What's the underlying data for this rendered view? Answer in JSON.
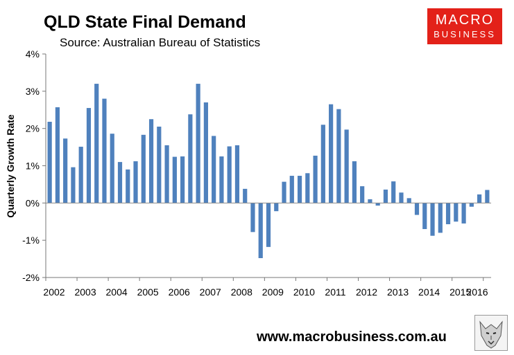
{
  "header": {
    "title": "QLD State Final Demand",
    "subtitle": "Source: Australian Bureau of Statistics"
  },
  "brand": {
    "logo_line1": "MACRO",
    "logo_line2": "BUSINESS",
    "website": "www.macrobusiness.com.au",
    "logo_color": "#e32119",
    "bar_color": "#4f81bd"
  },
  "chart_data": {
    "type": "bar",
    "title": "QLD State Final Demand",
    "subtitle": "Source: Australian Bureau of Statistics",
    "xlabel": "",
    "ylabel": "Quarterly Growth Rate",
    "ylim": [
      -2,
      4
    ],
    "yticks": [
      -2,
      -1,
      0,
      1,
      2,
      3,
      4
    ],
    "ytick_labels": [
      "-2%",
      "-1%",
      "0%",
      "1%",
      "2%",
      "3%",
      "4%"
    ],
    "xtick_labels": [
      "2002",
      "2003",
      "2004",
      "2005",
      "2006",
      "2007",
      "2008",
      "2009",
      "2010",
      "2011",
      "2012",
      "2013",
      "2014",
      "2015",
      "2016"
    ],
    "grid": false,
    "series": [
      {
        "name": "Quarterly Growth Rate",
        "values": [
          2.18,
          2.57,
          1.73,
          0.96,
          1.51,
          2.55,
          3.2,
          2.8,
          1.86,
          1.1,
          0.9,
          1.12,
          1.83,
          2.25,
          2.05,
          1.55,
          1.24,
          1.25,
          2.38,
          3.2,
          2.7,
          1.8,
          1.25,
          1.52,
          1.55,
          0.38,
          -0.78,
          -1.48,
          -1.18,
          -0.22,
          0.57,
          0.73,
          0.73,
          0.8,
          1.27,
          2.1,
          2.65,
          2.52,
          1.97,
          1.12,
          0.45,
          0.1,
          -0.07,
          0.36,
          0.58,
          0.28,
          0.13,
          -0.32,
          -0.7,
          -0.88,
          -0.8,
          -0.57,
          -0.5,
          -0.55,
          -0.1,
          0.23,
          0.35
        ]
      }
    ]
  }
}
